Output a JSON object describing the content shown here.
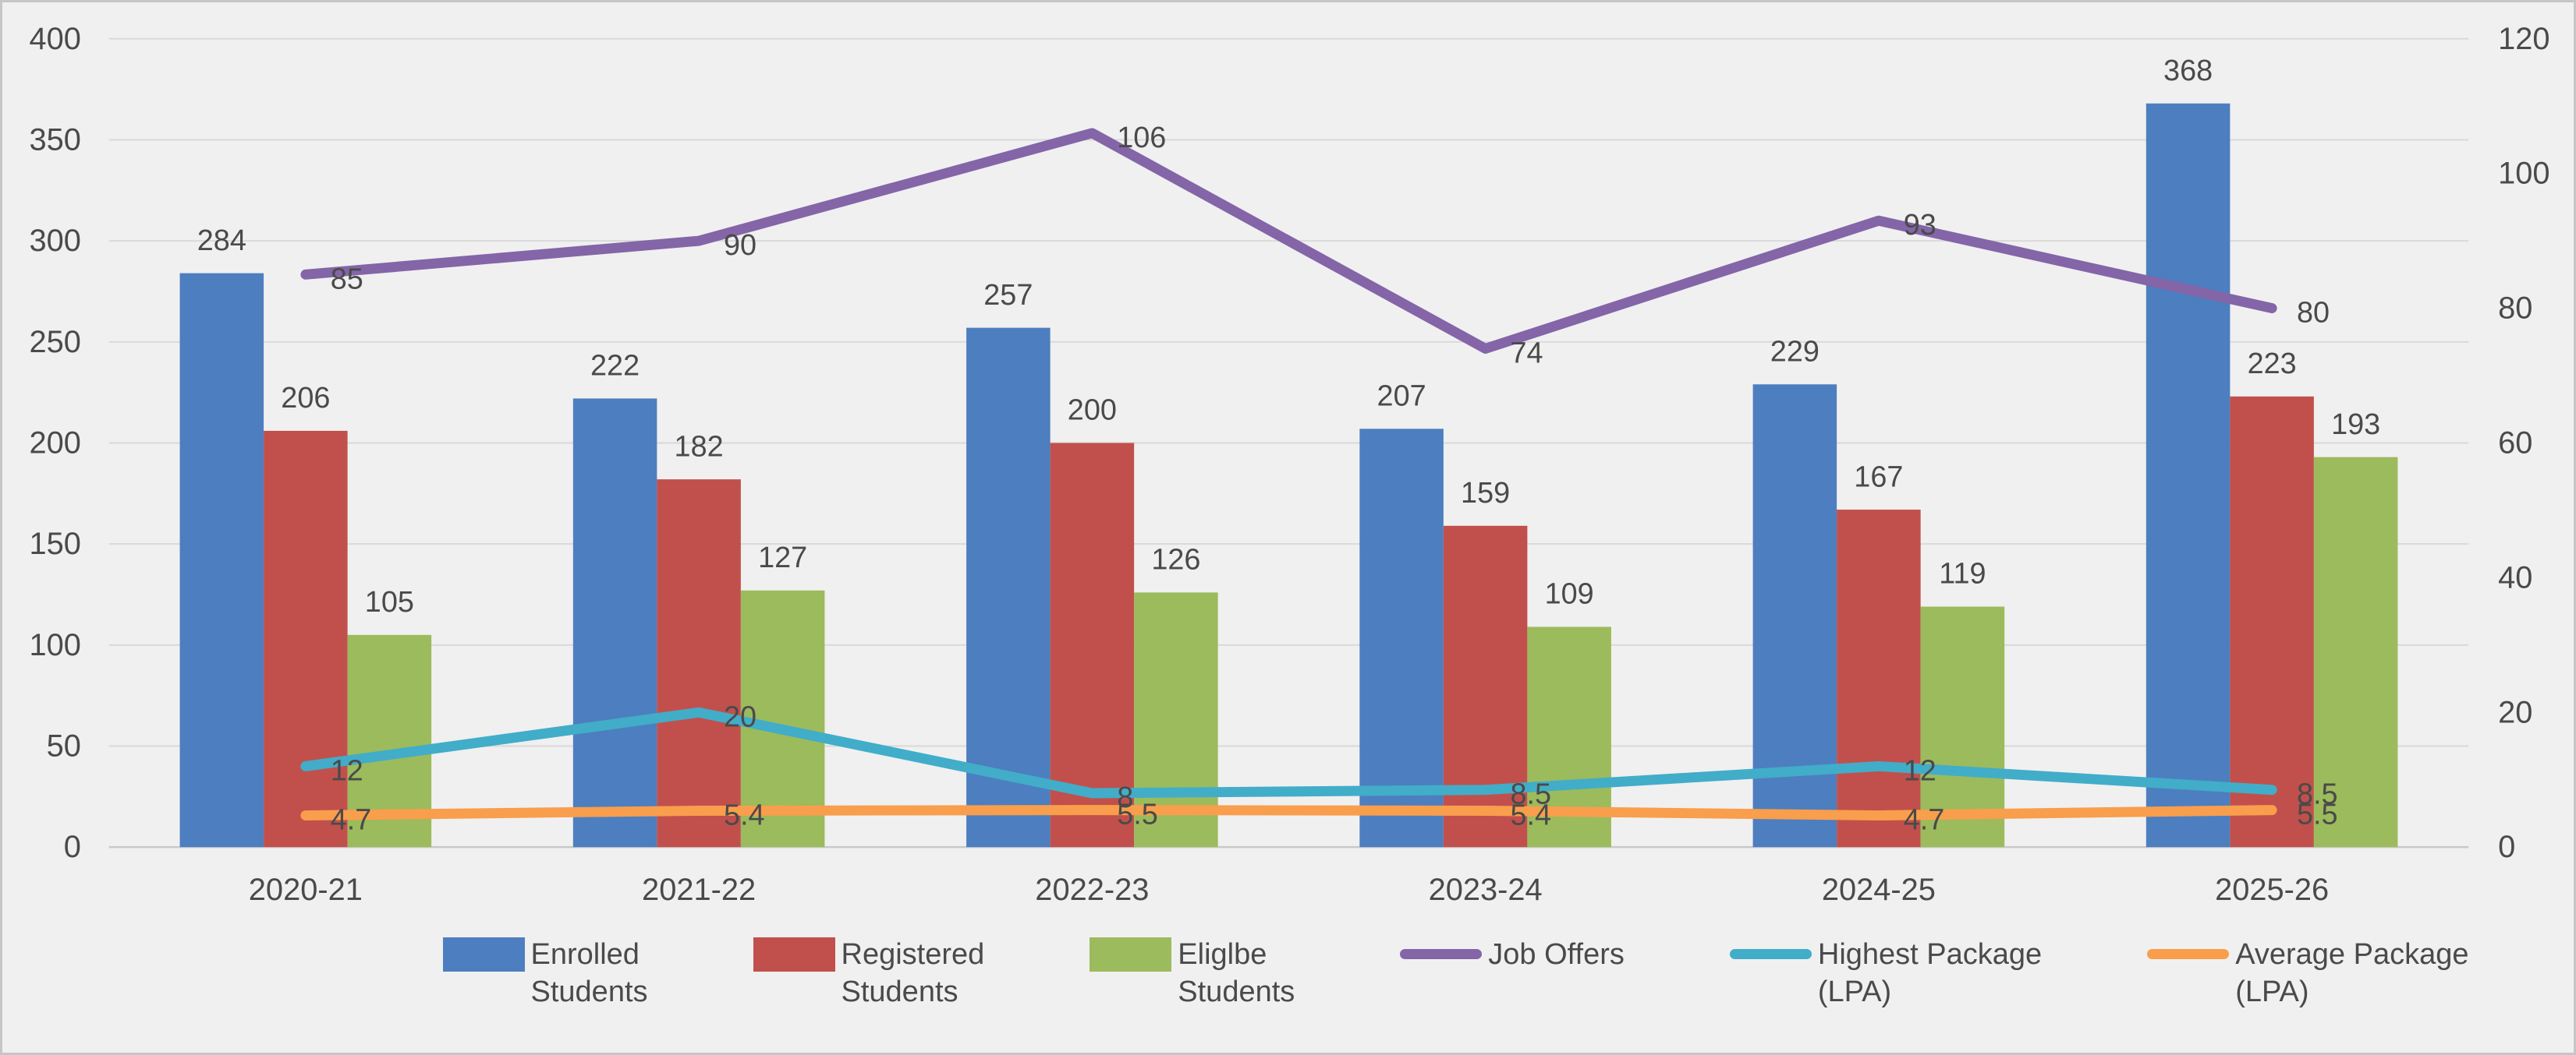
{
  "chart_data": {
    "type": "bar",
    "subtype": "combo-clustered-bar-plus-line-dual-axis",
    "title": "",
    "categories": [
      "2020-21",
      "2021-22",
      "2022-23",
      "2023-24",
      "2024-25",
      "2025-26"
    ],
    "bar_series": [
      {
        "name": "Enrolled Students",
        "legend_lines": [
          "Enrolled",
          "Students"
        ],
        "color": "#4d7ebf",
        "axis": "left",
        "values": [
          284,
          222,
          257,
          207,
          229,
          368
        ]
      },
      {
        "name": "Registered Students",
        "legend_lines": [
          "Registered",
          "Students"
        ],
        "color": "#c1504c",
        "axis": "left",
        "values": [
          206,
          182,
          200,
          159,
          167,
          223
        ]
      },
      {
        "name": "Eliglbe Students",
        "legend_lines": [
          "Eliglbe",
          "Students"
        ],
        "color": "#9cbb5c",
        "axis": "left",
        "values": [
          105,
          127,
          126,
          109,
          119,
          193
        ]
      }
    ],
    "line_series": [
      {
        "name": "Job Offers",
        "legend_lines": [
          "Job Offers"
        ],
        "color": "#8465a8",
        "axis": "right",
        "values": [
          85,
          90,
          106,
          74,
          93,
          80
        ]
      },
      {
        "name": "Highest Package (LPA)",
        "legend_lines": [
          "Highest Package",
          "(LPA)"
        ],
        "color": "#41adc9",
        "axis": "right",
        "values": [
          12,
          20,
          8,
          8.5,
          12,
          8.5
        ]
      },
      {
        "name": "Average Package (LPA)",
        "legend_lines": [
          "Average Package",
          "(LPA)"
        ],
        "color": "#f99e4c",
        "axis": "right",
        "values": [
          4.7,
          5.4,
          5.5,
          5.4,
          4.7,
          5.5
        ]
      }
    ],
    "left_axis": {
      "min": 0,
      "max": 400,
      "step": 50,
      "tick_labels": [
        "0",
        "50",
        "100",
        "150",
        "200",
        "250",
        "300",
        "350",
        "400"
      ]
    },
    "right_axis": {
      "min": 0,
      "max": 120,
      "step": 20,
      "tick_labels": [
        "0",
        "20",
        "40",
        "60",
        "80",
        "100",
        "120"
      ]
    },
    "grid": "horizontal-only",
    "legend_position": "bottom",
    "data_labels": "shown",
    "colors": {
      "background": "#f0f0f0",
      "gridline": "#d9d9d9",
      "axis_line": "#c9c9c9",
      "text": "#4a4a4a",
      "border": "#c6c6c6"
    }
  }
}
